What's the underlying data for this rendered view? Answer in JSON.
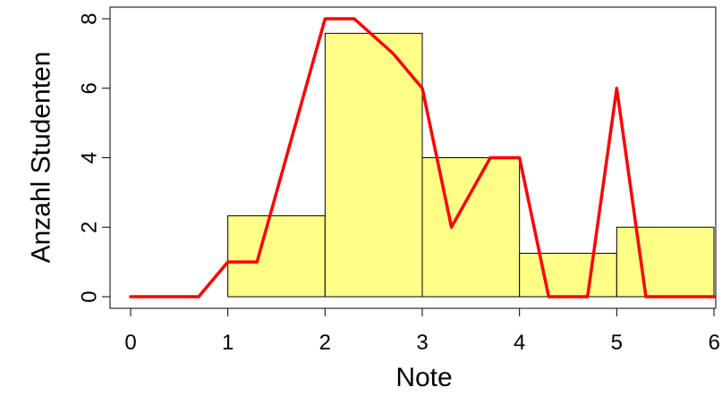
{
  "chart_data": {
    "type": "bar",
    "xlabel": "Note",
    "ylabel": "Anzahl Studenten",
    "xlim": [
      0,
      6
    ],
    "ylim": [
      0,
      8
    ],
    "grid": false,
    "x_ticks": [
      0,
      1,
      2,
      3,
      4,
      5,
      6
    ],
    "y_ticks": [
      0,
      2,
      4,
      6,
      8
    ],
    "bars": [
      {
        "x0": 1,
        "x1": 2,
        "value": 2.33
      },
      {
        "x0": 2,
        "x1": 3,
        "value": 7.58
      },
      {
        "x0": 3,
        "x1": 4,
        "value": 4.0
      },
      {
        "x0": 4,
        "x1": 5,
        "value": 1.25
      },
      {
        "x0": 5,
        "x1": 6,
        "value": 2.0
      }
    ],
    "line": {
      "x": [
        0,
        0.7,
        1.0,
        1.3,
        2.0,
        2.3,
        2.7,
        3.0,
        3.3,
        3.7,
        4.0,
        4.3,
        4.7,
        5.0,
        5.3,
        6.0
      ],
      "y": [
        0,
        0,
        1,
        1,
        8,
        8,
        7,
        6,
        2,
        4,
        4,
        0,
        0,
        6,
        0,
        0
      ]
    },
    "colors": {
      "bar_fill": "#ffff88",
      "bar_stroke": "#000000",
      "line": "#ff0000"
    }
  }
}
